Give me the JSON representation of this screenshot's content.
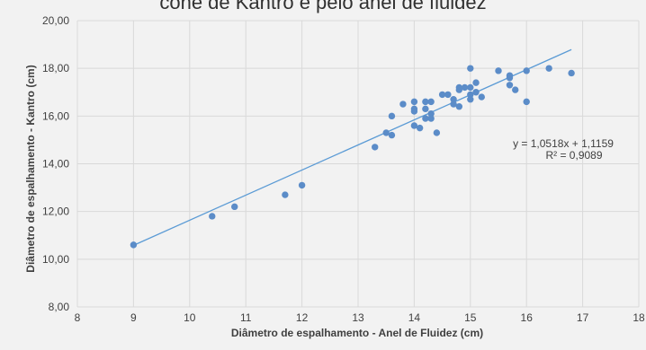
{
  "chart_data": {
    "type": "scatter",
    "title": "cone de Kantro e pelo anel de fluidez",
    "xlabel": "Diâmetro de espalhamento - Anel de Fluidez  (cm)",
    "ylabel": "Diâmetro de espalhamento - Kantro  (cm)",
    "xlim": [
      8,
      18
    ],
    "ylim": [
      8,
      20
    ],
    "x_ticks": [
      "8",
      "9",
      "10",
      "11",
      "12",
      "13",
      "14",
      "15",
      "16",
      "17",
      "18"
    ],
    "y_ticks": [
      "8,00",
      "10,00",
      "12,00",
      "14,00",
      "16,00",
      "18,00",
      "20,00"
    ],
    "grid": true,
    "equation": "y = 1,0518x + 1,1159",
    "r_squared": "R² = 0,9089",
    "trendline": {
      "slope": 1.0518,
      "intercept": 1.1159,
      "x_range": [
        9,
        16.8
      ]
    },
    "colors": {
      "points": "#5b8cc8",
      "line": "#5b9bd5",
      "grid": "#d9d9d9"
    },
    "points": [
      [
        9.0,
        10.6
      ],
      [
        10.4,
        11.8
      ],
      [
        10.8,
        12.2
      ],
      [
        11.7,
        12.7
      ],
      [
        12.0,
        13.1
      ],
      [
        13.3,
        14.7
      ],
      [
        13.5,
        15.3
      ],
      [
        13.6,
        15.2
      ],
      [
        13.6,
        16.0
      ],
      [
        13.8,
        16.5
      ],
      [
        14.0,
        16.6
      ],
      [
        14.0,
        16.3
      ],
      [
        14.0,
        16.2
      ],
      [
        14.0,
        15.6
      ],
      [
        14.1,
        15.5
      ],
      [
        14.2,
        16.6
      ],
      [
        14.2,
        16.3
      ],
      [
        14.2,
        15.9
      ],
      [
        14.3,
        16.6
      ],
      [
        14.3,
        16.1
      ],
      [
        14.3,
        15.9
      ],
      [
        14.4,
        15.3
      ],
      [
        14.5,
        16.9
      ],
      [
        14.6,
        16.9
      ],
      [
        14.7,
        16.7
      ],
      [
        14.7,
        16.5
      ],
      [
        14.8,
        17.2
      ],
      [
        14.8,
        17.1
      ],
      [
        14.8,
        16.4
      ],
      [
        14.9,
        17.2
      ],
      [
        15.0,
        18.0
      ],
      [
        15.0,
        17.2
      ],
      [
        15.0,
        16.9
      ],
      [
        15.0,
        16.7
      ],
      [
        15.1,
        17.4
      ],
      [
        15.1,
        17.0
      ],
      [
        15.2,
        16.8
      ],
      [
        15.5,
        17.9
      ],
      [
        15.7,
        17.7
      ],
      [
        15.7,
        17.6
      ],
      [
        15.7,
        17.3
      ],
      [
        15.8,
        17.1
      ],
      [
        16.0,
        17.9
      ],
      [
        16.0,
        16.6
      ],
      [
        16.4,
        18.0
      ],
      [
        16.8,
        17.8
      ]
    ]
  }
}
